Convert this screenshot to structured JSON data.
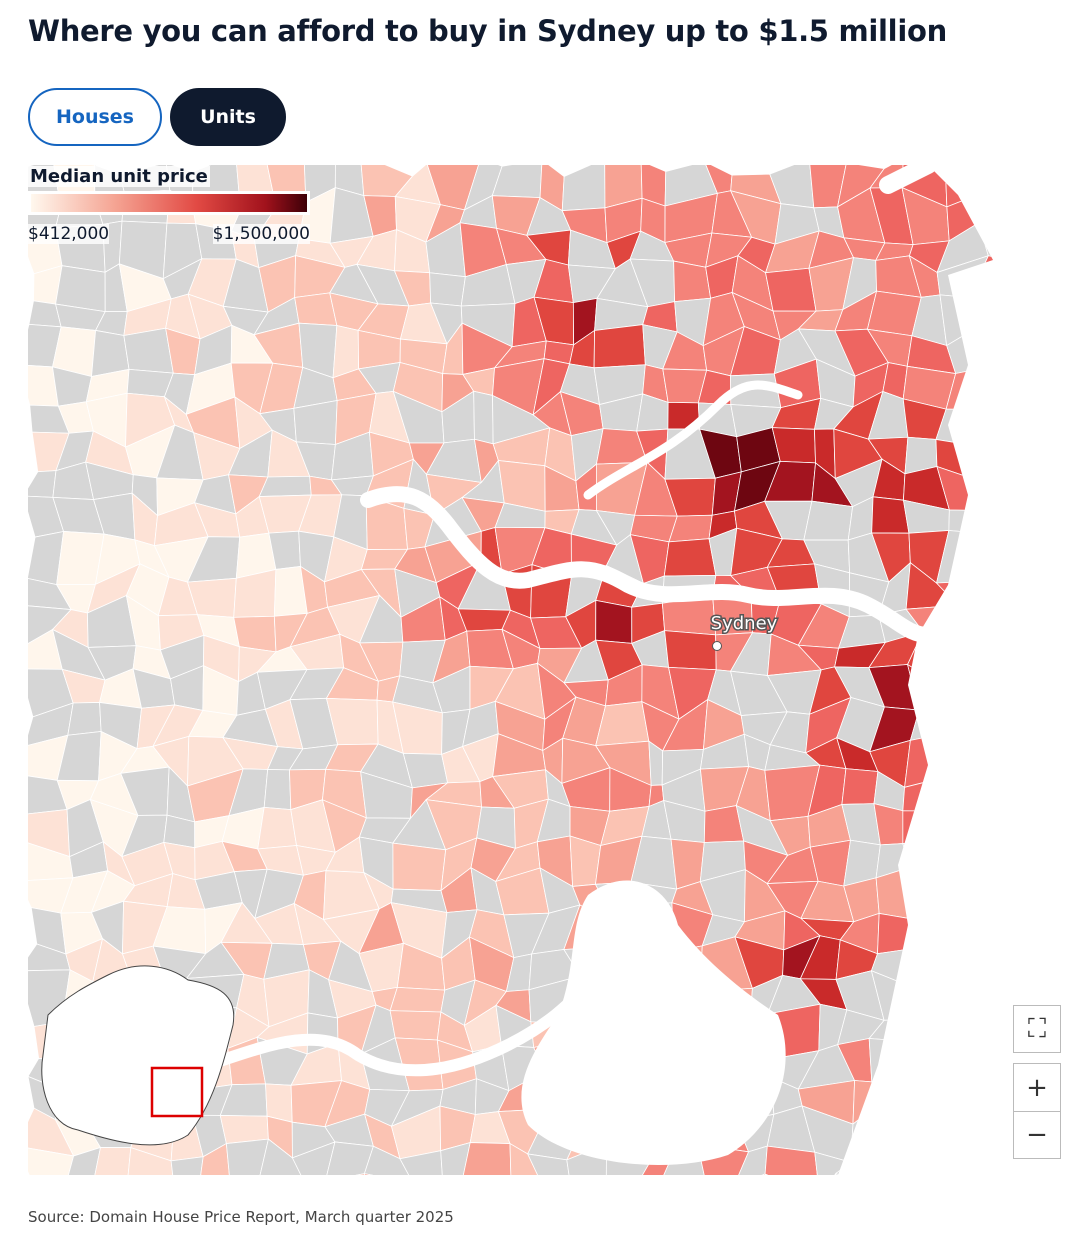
{
  "header": {
    "title": "Where you can afford to buy in Sydney up to $1.5 million"
  },
  "tabs": {
    "items": [
      "Houses",
      "Units"
    ],
    "active": 1
  },
  "legend": {
    "title": "Median unit price",
    "min_label": "$412,000",
    "max_label": "$1,500,000"
  },
  "map": {
    "place_label": "Sydney"
  },
  "footer": {
    "source": "Source: Domain House Price Report, March quarter 2025"
  }
}
